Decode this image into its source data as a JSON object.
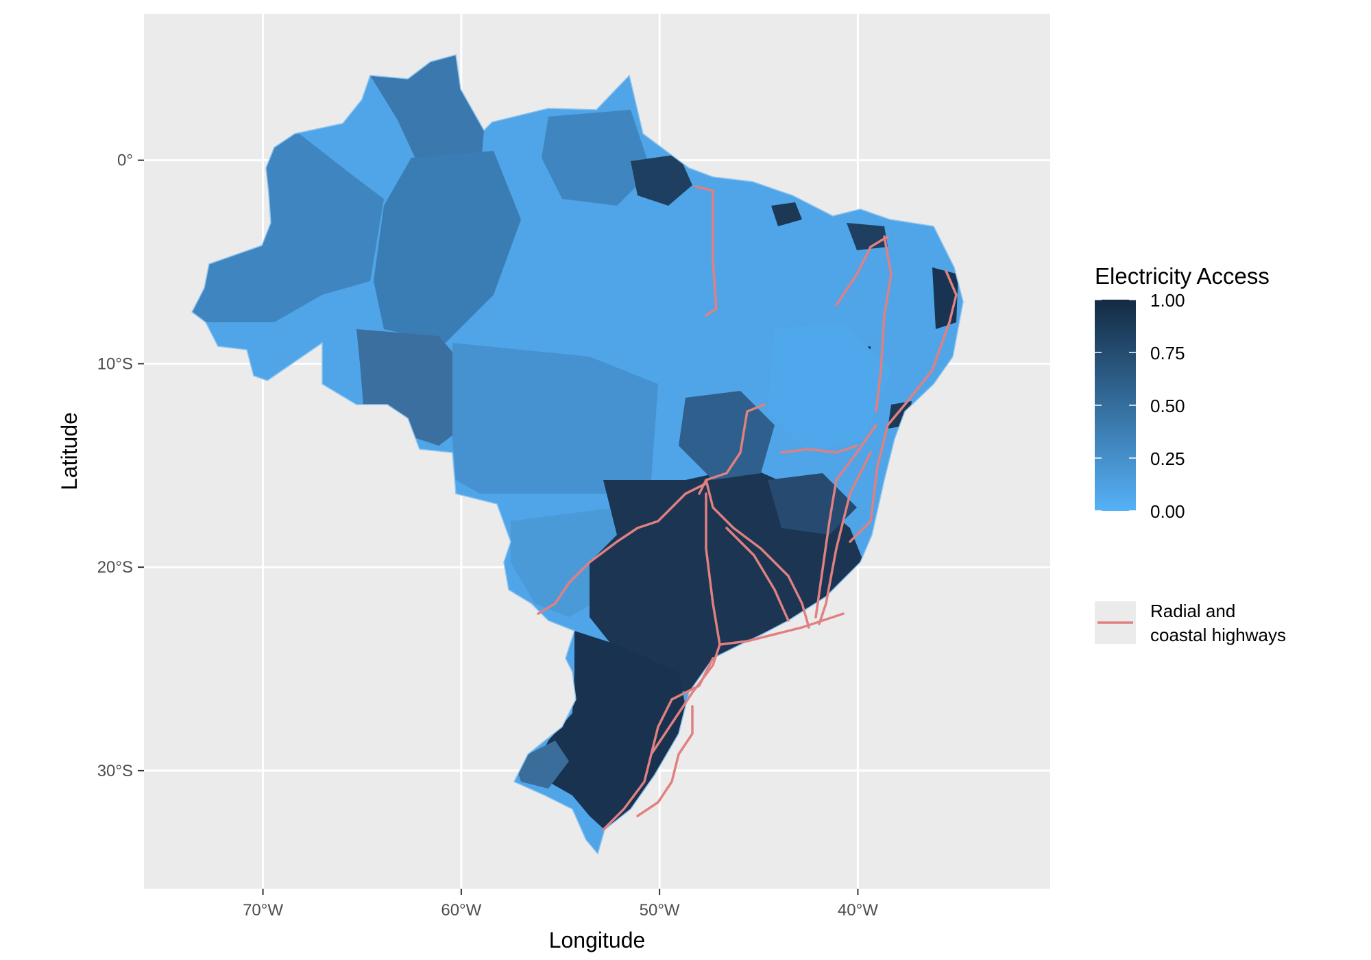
{
  "figure": {
    "xlabel": "Longitude",
    "ylabel": "Latitude"
  },
  "axes": {
    "x_ticks": [
      {
        "value": -70,
        "label": "70°W"
      },
      {
        "value": -60,
        "label": "60°W"
      },
      {
        "value": -50,
        "label": "50°W"
      },
      {
        "value": -40,
        "label": "40°W"
      }
    ],
    "y_ticks": [
      {
        "value": 0,
        "label": "0°"
      },
      {
        "value": -10,
        "label": "10°S"
      },
      {
        "value": -20,
        "label": "20°S"
      },
      {
        "value": -30,
        "label": "30°S"
      }
    ],
    "xlim": [
      -76,
      -30.3
    ],
    "ylim": [
      -35.8,
      7.2
    ]
  },
  "legend": {
    "fill_title": "Electricity Access",
    "fill_breaks": [
      "1.00",
      "0.75",
      "0.50",
      "0.25",
      "0.00"
    ],
    "line_label_1": "Radial and",
    "line_label_2": "coastal highways"
  },
  "colors": {
    "panel_background": "#ebebeb",
    "grid": "#ffffff",
    "fill_high": "#132b43",
    "fill_low": "#56b1f7",
    "highway": "#e08080"
  }
}
